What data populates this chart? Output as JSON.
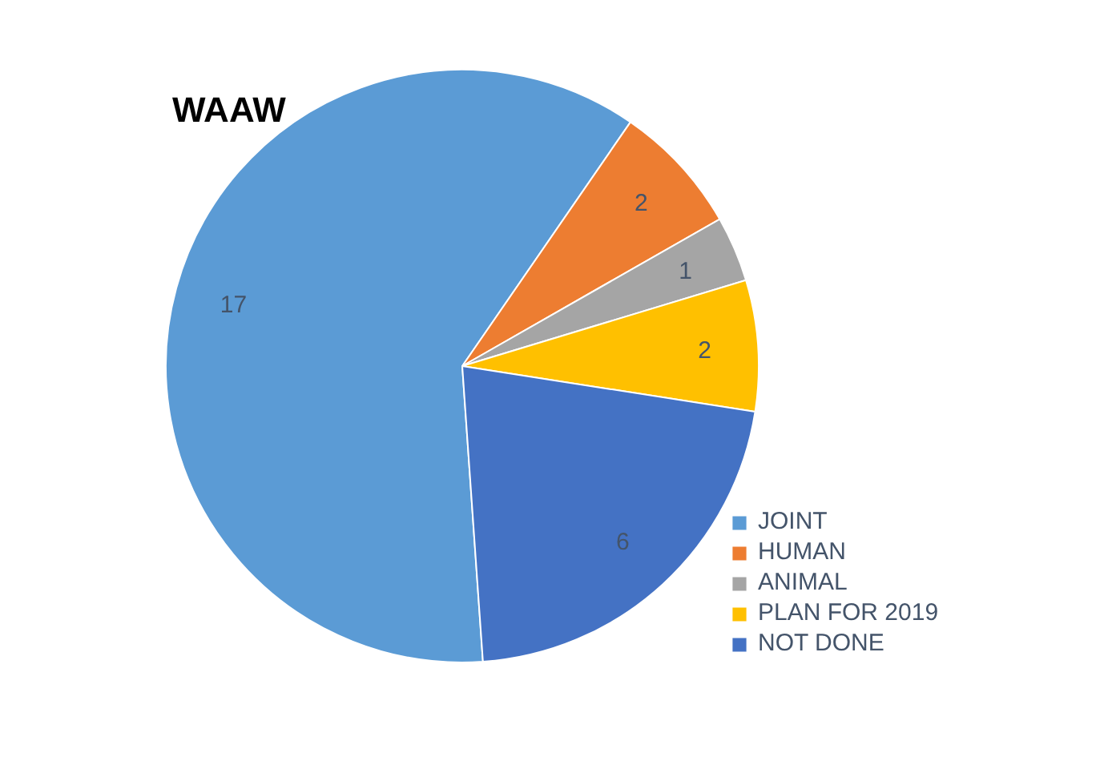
{
  "chart_data": {
    "type": "pie",
    "title": "WAAW",
    "categories": [
      "JOINT",
      "HUMAN",
      "ANIMAL",
      "PLAN FOR 2019",
      "NOT DONE"
    ],
    "values": [
      17,
      2,
      1,
      2,
      6
    ],
    "colors": [
      "#5b9bd5",
      "#ed7d31",
      "#a5a5a5",
      "#ffc000",
      "#4472c4"
    ],
    "data_labels": true,
    "legend": "bottom right"
  }
}
